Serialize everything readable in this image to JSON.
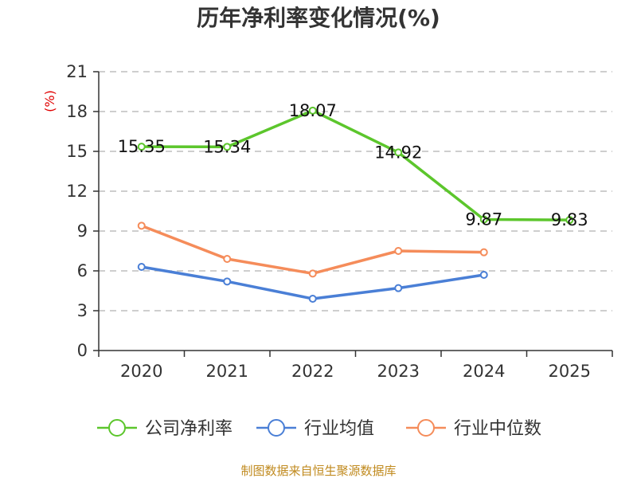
{
  "chart_data": {
    "type": "line",
    "title": "历年净利率变化情况(%)",
    "ylabel": "(%)",
    "xlabel": "",
    "categories": [
      "2020",
      "2021",
      "2022",
      "2023",
      "2024",
      "2025"
    ],
    "ylim": [
      0,
      21
    ],
    "yticks": [
      0,
      3,
      6,
      9,
      12,
      15,
      18,
      21
    ],
    "yticks_text": [
      "0",
      "3",
      "6",
      "9",
      "12",
      "15",
      "18",
      "21"
    ],
    "grid": true,
    "legend_position": "bottom",
    "series": [
      {
        "name": "公司净利率",
        "color": "#5cc62c",
        "values": [
          15.35,
          15.34,
          18.07,
          14.92,
          9.87,
          9.83
        ],
        "labels": [
          "15.35",
          "15.34",
          "18.07",
          "14.92",
          "9.87",
          "9.83"
        ]
      },
      {
        "name": "行业均值",
        "color": "#4a7fd6",
        "values": [
          6.3,
          5.2,
          3.9,
          4.7,
          5.7,
          null
        ]
      },
      {
        "name": "行业中位数",
        "color": "#f58c5a",
        "values": [
          9.4,
          6.9,
          5.8,
          7.5,
          7.4,
          null
        ]
      }
    ]
  },
  "footer": {
    "source": "制图数据来自恒生聚源数据库"
  }
}
